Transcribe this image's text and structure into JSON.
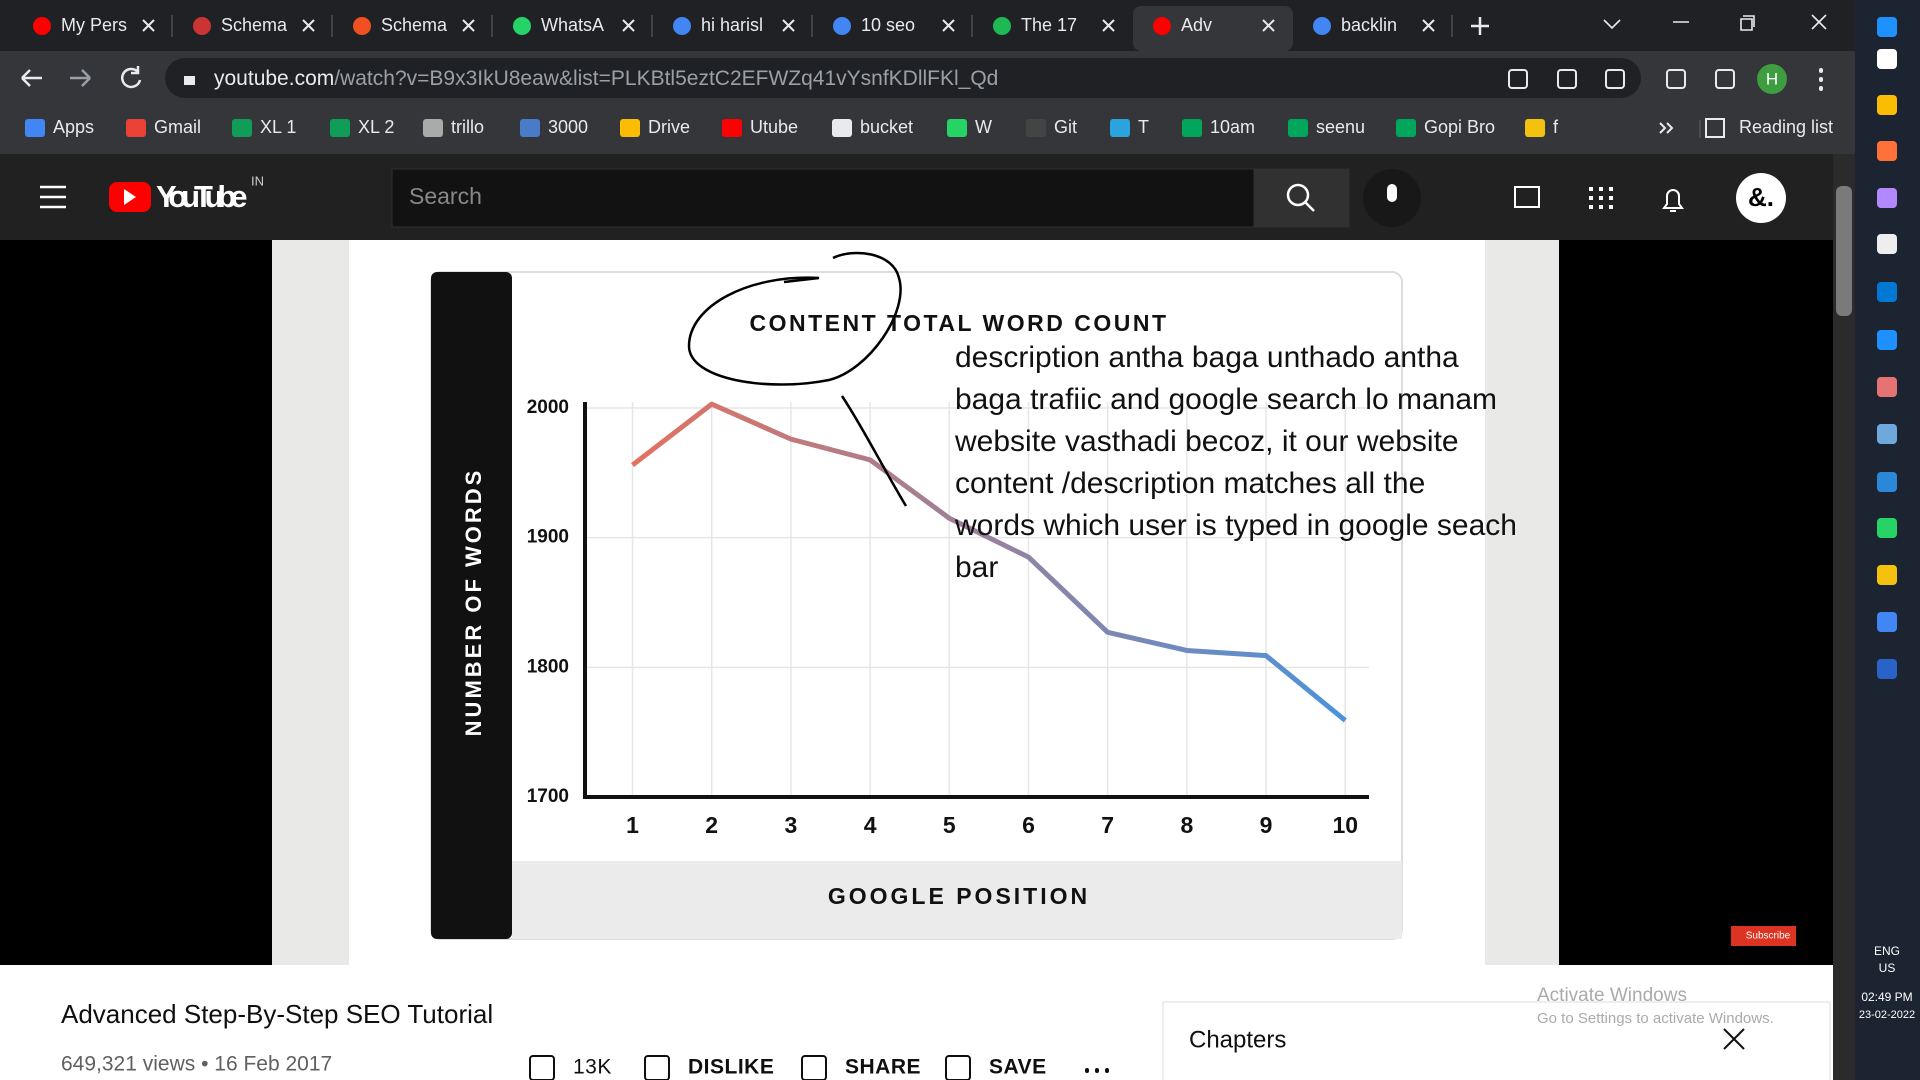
{
  "browser": {
    "tabs": [
      "My Pers",
      "Schema",
      "Schema",
      "WhatsA",
      "hi harisl",
      "10 seo",
      "The 17",
      "Adv",
      "backlin"
    ],
    "url_host": "youtube.com",
    "url_path": "/watch?v=B9x3IkU8eaw&list=PLKBtl5eztC2EFWZq41vYsnfKDllFKl_Qd",
    "profile": "H",
    "bookmarks": [
      "Apps",
      "Gmail",
      "XL 1",
      "XL 2",
      "trillo",
      "3000",
      "Drive",
      "Utube",
      "bucket",
      "W",
      "Git",
      "T",
      "10am",
      "seenu",
      "Gopi Bro",
      "f"
    ],
    "reading_list": "Reading list"
  },
  "youtube": {
    "logo": "YouTube",
    "region": "IN",
    "search_placeholder": "Search",
    "avatar": "&."
  },
  "video": {
    "chart": {
      "type": "line",
      "title": "CONTENT TOTAL WORD COUNT",
      "y_label": "NUMBER OF WORDS",
      "x_label": "GOOGLE POSITION",
      "x": [
        1,
        2,
        3,
        4,
        5,
        6,
        7,
        8,
        9,
        10
      ],
      "values": [
        1956,
        2003,
        1976,
        1960,
        1915,
        1885,
        1827,
        1813,
        1809,
        1759
      ],
      "line_colors": [
        "#e3725f",
        "#4b92dc"
      ],
      "xlim": [
        0.4,
        10.3
      ],
      "ylim": [
        1700,
        2000
      ],
      "xticks": [
        1,
        2,
        3,
        4,
        5,
        6,
        7,
        8,
        9,
        10
      ],
      "yticks": [
        1700,
        1800,
        1900,
        2000
      ],
      "grid": true
    },
    "annotation": [
      "description antha baga unthado antha",
      "baga trafiic and google search lo manam",
      "website vasthadi becoz, it our website",
      "content /description matches all the",
      "words which user is typed in google seach",
      "bar"
    ],
    "subscribe": "Subscribe"
  },
  "title": "Advanced Step-By-Step SEO Tutorial",
  "views": "649,321 views • 16 Feb 2017",
  "actions": [
    "13K",
    "DISLIKE",
    "SHARE",
    "SAVE"
  ],
  "chapters": "Chapters",
  "watermark": [
    "Activate Windows",
    "Go to Settings to activate Windows."
  ],
  "taskbar": {
    "language": "ENG",
    "region": "US",
    "time": "02:49 PM",
    "date": "23-02-2022"
  }
}
